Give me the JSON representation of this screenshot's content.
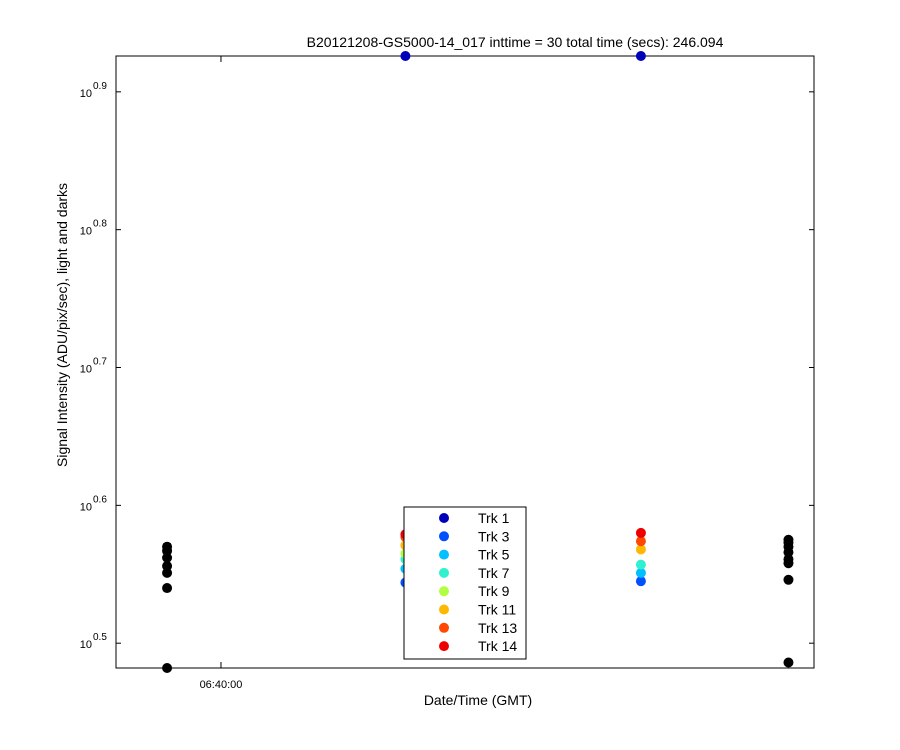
{
  "chart_data": {
    "type": "scatter",
    "title": "B20121208-GS5000-14_017 inttime = 30 total time (secs): 246.094",
    "xlabel": "Date/Time (GMT)",
    "ylabel": "Signal Intensity (ADU/pix/sec), light and darks",
    "y_scale": "log10",
    "ylim_exponent": [
      0.482,
      0.926
    ],
    "y_ticks": [
      {
        "base": "10",
        "exp": "0.5",
        "value_exponent": 0.5
      },
      {
        "base": "10",
        "exp": "0.6",
        "value_exponent": 0.6
      },
      {
        "base": "10",
        "exp": "0.7",
        "value_exponent": 0.7
      },
      {
        "base": "10",
        "exp": "0.8",
        "value_exponent": 0.8
      },
      {
        "base": "10",
        "exp": "0.9",
        "value_exponent": 0.9
      }
    ],
    "xlim": [
      "06:39:23",
      "06:43:29"
    ],
    "x_ticks": [
      {
        "label": "06:40:00",
        "time": "06:40:00"
      }
    ],
    "grid": false,
    "legend_position": "lower center",
    "colors": {
      "dark": "#000000",
      "Trk 1": "#0000b8",
      "Trk 3": "#0050ff",
      "Trk 5": "#00c0ff",
      "Trk 7": "#30f0d0",
      "Trk 9": "#b0ff40",
      "Trk 11": "#ffb800",
      "Trk 13": "#ff4800",
      "Trk 14": "#ee0000"
    },
    "legend": [
      "Trk 1",
      "Trk 3",
      "Trk 5",
      "Trk 7",
      "Trk 9",
      "Trk 11",
      "Trk 13",
      "Trk 14"
    ],
    "series": [
      {
        "x": "06:39:41",
        "role": "dark",
        "y_exponents": [
          0.482,
          0.54,
          0.551,
          0.556,
          0.562,
          0.567,
          0.57
        ]
      },
      {
        "x": "06:41:05",
        "role": "light",
        "points": [
          {
            "track": "Trk 1",
            "y_exponent": 0.926
          },
          {
            "track": "Trk 3",
            "y_exponent": 0.544
          },
          {
            "track": "Trk 5",
            "y_exponent": 0.554
          },
          {
            "track": "Trk 7",
            "y_exponent": 0.561
          },
          {
            "track": "Trk 9",
            "y_exponent": 0.565
          },
          {
            "track": "Trk 11",
            "y_exponent": 0.571
          },
          {
            "track": "Trk 13",
            "y_exponent": 0.577
          },
          {
            "track": "Trk 14",
            "y_exponent": 0.579
          }
        ]
      },
      {
        "x": "06:42:28",
        "role": "light",
        "points": [
          {
            "track": "Trk 1",
            "y_exponent": 0.926
          },
          {
            "track": "Trk 3",
            "y_exponent": 0.545
          },
          {
            "track": "Trk 5",
            "y_exponent": 0.551
          },
          {
            "track": "Trk 7",
            "y_exponent": 0.557
          },
          {
            "track": "Trk 11",
            "y_exponent": 0.568
          },
          {
            "track": "Trk 13",
            "y_exponent": 0.574
          },
          {
            "track": "Trk 14",
            "y_exponent": 0.58
          }
        ]
      },
      {
        "x": "06:43:20",
        "role": "dark",
        "y_exponents": [
          0.486,
          0.546,
          0.558,
          0.561,
          0.566,
          0.57,
          0.573,
          0.575
        ]
      }
    ]
  }
}
